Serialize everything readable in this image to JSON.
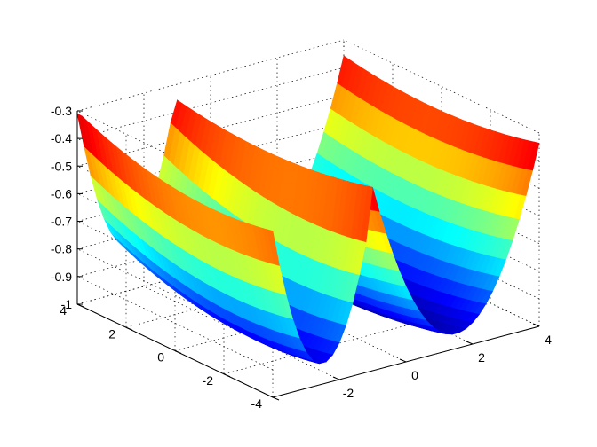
{
  "chart_data": {
    "type": "surface",
    "title": "",
    "xlabel": "",
    "ylabel": "",
    "zlabel": "",
    "colormap": "jet",
    "grid": true,
    "xlim": [
      -4,
      4
    ],
    "ylim": [
      -4,
      4
    ],
    "zlim": [
      -1,
      -0.3
    ],
    "x_ticks": [
      "-2",
      "0",
      "2",
      "4"
    ],
    "y_ticks": [
      "-4",
      "-2",
      "0",
      "2",
      "4"
    ],
    "z_ticks": [
      "-0.3",
      "-0.4",
      "-0.5",
      "-0.6",
      "-0.7",
      "-0.8",
      "-0.9",
      "-1"
    ],
    "surface": {
      "x_range": [
        -4,
        4
      ],
      "y_range": [
        -4,
        4
      ],
      "fold_line_x": -1,
      "z_at_edges": -0.32,
      "z_min_left_valley": -0.95,
      "z_min_right_valley": -1.0,
      "z_at_fold": -0.42,
      "left_valley_center": [
        -2.5,
        -1.5
      ],
      "right_valley_center": [
        1.5,
        0.5
      ]
    }
  }
}
